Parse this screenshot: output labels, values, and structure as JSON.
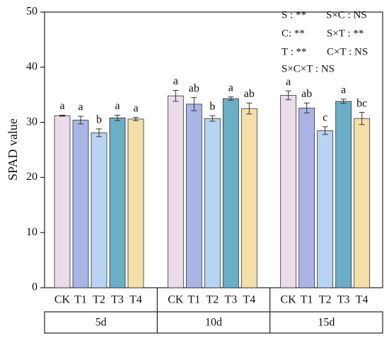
{
  "chart_data": {
    "type": "bar",
    "y_label": "SPAD value",
    "categories": [
      "5d",
      "10d",
      "15d"
    ],
    "series": [
      {
        "name": "CK",
        "color": "#ecdbe9",
        "values": [
          31.2,
          34.8,
          34.9
        ],
        "errors": [
          0.1,
          1.0,
          0.8
        ],
        "letters": [
          "a",
          "a",
          "a"
        ]
      },
      {
        "name": "T1",
        "color": "#aab5e5",
        "values": [
          30.4,
          33.3,
          32.6
        ],
        "errors": [
          0.7,
          1.2,
          0.9
        ],
        "letters": [
          "a",
          "ab",
          "ab"
        ]
      },
      {
        "name": "T2",
        "color": "#b7d4f1",
        "values": [
          28.1,
          30.7,
          28.5
        ],
        "errors": [
          0.7,
          0.5,
          0.7
        ],
        "letters": [
          "b",
          "b",
          "c"
        ]
      },
      {
        "name": "T3",
        "color": "#6aaec7",
        "values": [
          30.8,
          34.3,
          33.8
        ],
        "errors": [
          0.5,
          0.3,
          0.4
        ],
        "letters": [
          "a",
          "a",
          "a"
        ]
      },
      {
        "name": "T4",
        "color": "#f5dfa9",
        "values": [
          30.6,
          32.5,
          30.7
        ],
        "errors": [
          0.3,
          1.0,
          1.1
        ],
        "letters": [
          "a",
          "ab",
          "bc"
        ]
      }
    ],
    "ylim": [
      0,
      50
    ],
    "yticks": [
      0,
      10,
      20,
      30,
      40,
      50
    ],
    "annotations": [
      "S : **",
      "S×C : NS",
      "C: **",
      "S×T : **",
      "T : **",
      "C×T : NS",
      "S×C×T : NS"
    ]
  }
}
